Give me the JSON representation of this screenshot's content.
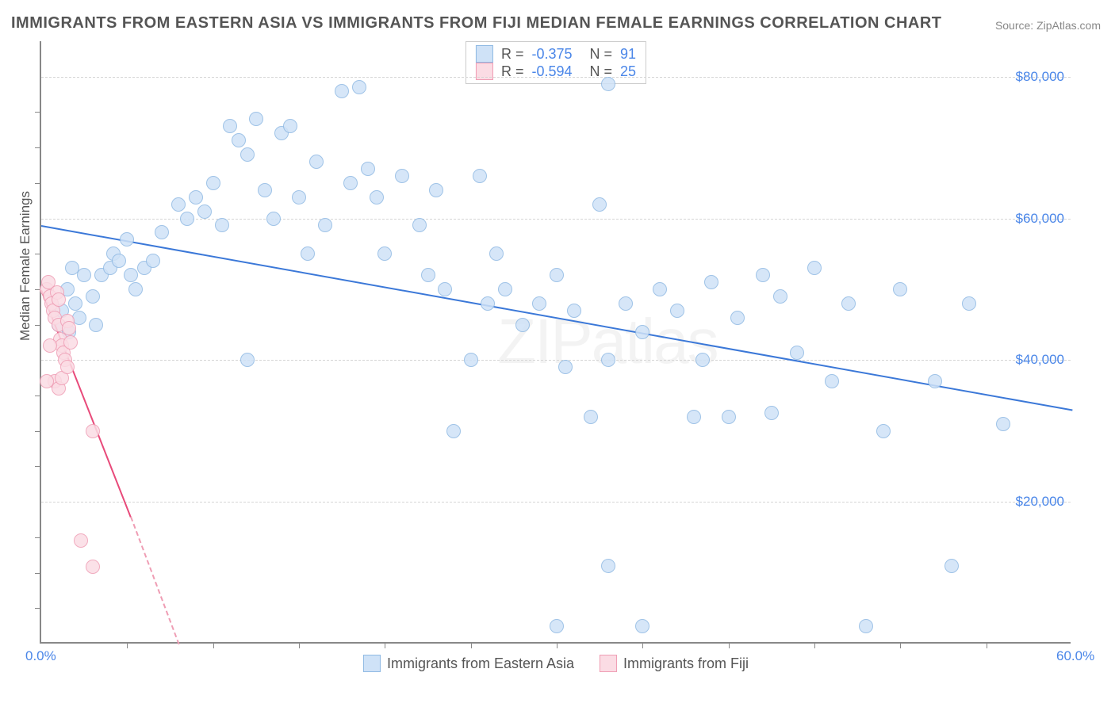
{
  "title": "IMMIGRANTS FROM EASTERN ASIA VS IMMIGRANTS FROM FIJI MEDIAN FEMALE EARNINGS CORRELATION CHART",
  "source": "Source: ZipAtlas.com",
  "watermark": "ZIPatlas",
  "ylabel": "Median Female Earnings",
  "chart": {
    "type": "scatter",
    "xlim": [
      0,
      60
    ],
    "ylim": [
      0,
      85000
    ],
    "xtick_labels": [
      "0.0%",
      "60.0%"
    ],
    "ytick_values": [
      20000,
      40000,
      60000,
      80000
    ],
    "ytick_labels": [
      "$20,000",
      "$40,000",
      "$60,000",
      "$80,000"
    ],
    "minor_xticks": [
      5,
      10,
      15,
      20,
      25,
      30,
      35,
      40,
      45,
      50,
      55
    ],
    "minor_yticks": [
      5000,
      10000,
      15000,
      25000,
      30000,
      35000,
      45000,
      50000,
      55000,
      65000,
      70000,
      75000
    ],
    "grid_color": "#d5d5d5",
    "background": "#ffffff",
    "series": [
      {
        "name": "Immigrants from Eastern Asia",
        "fill": "#cfe2f7",
        "stroke": "#8fb9e3",
        "trend_color": "#3b78d8",
        "r_value": "-0.375",
        "n_value": "91",
        "trend": {
          "x1": 0,
          "y1": 59000,
          "x2": 60,
          "y2": 33000
        },
        "marker_radius": 9,
        "points": [
          [
            1.0,
            45000
          ],
          [
            1.2,
            47000
          ],
          [
            1.5,
            50000
          ],
          [
            1.6,
            44000
          ],
          [
            1.8,
            53000
          ],
          [
            2.0,
            48000
          ],
          [
            2.2,
            46000
          ],
          [
            2.5,
            52000
          ],
          [
            3.0,
            49000
          ],
          [
            3.2,
            45000
          ],
          [
            3.5,
            52000
          ],
          [
            4.0,
            53000
          ],
          [
            4.2,
            55000
          ],
          [
            4.5,
            54000
          ],
          [
            5.0,
            57000
          ],
          [
            5.2,
            52000
          ],
          [
            5.5,
            50000
          ],
          [
            6.0,
            53000
          ],
          [
            6.5,
            54000
          ],
          [
            7.0,
            58000
          ],
          [
            8.0,
            62000
          ],
          [
            8.5,
            60000
          ],
          [
            9.0,
            63000
          ],
          [
            9.5,
            61000
          ],
          [
            10.0,
            65000
          ],
          [
            10.5,
            59000
          ],
          [
            11.0,
            73000
          ],
          [
            11.5,
            71000
          ],
          [
            12.0,
            69000
          ],
          [
            12.5,
            74000
          ],
          [
            13.0,
            64000
          ],
          [
            13.5,
            60000
          ],
          [
            14.0,
            72000
          ],
          [
            14.5,
            73000
          ],
          [
            15.0,
            63000
          ],
          [
            15.5,
            55000
          ],
          [
            16.0,
            68000
          ],
          [
            16.5,
            59000
          ],
          [
            17.5,
            78000
          ],
          [
            18.0,
            65000
          ],
          [
            18.5,
            78500
          ],
          [
            19.0,
            67000
          ],
          [
            19.5,
            63000
          ],
          [
            20.0,
            55000
          ],
          [
            21.0,
            66000
          ],
          [
            22.0,
            59000
          ],
          [
            22.5,
            52000
          ],
          [
            23.0,
            64000
          ],
          [
            23.5,
            50000
          ],
          [
            25.0,
            40000
          ],
          [
            25.5,
            66000
          ],
          [
            26.0,
            48000
          ],
          [
            26.5,
            55000
          ],
          [
            27.0,
            50000
          ],
          [
            28.0,
            45000
          ],
          [
            29.0,
            48000
          ],
          [
            30.0,
            52000
          ],
          [
            30.5,
            39000
          ],
          [
            31.0,
            47000
          ],
          [
            24.0,
            30000
          ],
          [
            30.0,
            2500
          ],
          [
            32.0,
            32000
          ],
          [
            32.5,
            62000
          ],
          [
            33.0,
            40000
          ],
          [
            34.0,
            48000
          ],
          [
            35.0,
            44000
          ],
          [
            35.0,
            2500
          ],
          [
            36.0,
            50000
          ],
          [
            37.0,
            47000
          ],
          [
            33.0,
            11000
          ],
          [
            38.0,
            32000
          ],
          [
            39.0,
            51000
          ],
          [
            40.0,
            32000
          ],
          [
            40.5,
            46000
          ],
          [
            42.0,
            52000
          ],
          [
            43.0,
            49000
          ],
          [
            44.0,
            41000
          ],
          [
            45.0,
            53000
          ],
          [
            46.0,
            37000
          ],
          [
            47.0,
            48000
          ],
          [
            48.0,
            2500
          ],
          [
            49.0,
            30000
          ],
          [
            50.0,
            50000
          ],
          [
            52.0,
            37000
          ],
          [
            53.0,
            11000
          ],
          [
            54.0,
            48000
          ],
          [
            56.0,
            31000
          ],
          [
            33.0,
            79000
          ],
          [
            38.5,
            40000
          ],
          [
            42.5,
            32500
          ],
          [
            12.0,
            40000
          ]
        ]
      },
      {
        "name": "Immigrants from Fiji",
        "fill": "#fbdce4",
        "stroke": "#ef9db4",
        "trend_color": "#e84a7a",
        "r_value": "-0.594",
        "n_value": "25",
        "trend": {
          "x1": 0,
          "y1": 50000,
          "x2": 5.2,
          "y2": 18000
        },
        "trend_dash": {
          "x1": 5.2,
          "y1": 18000,
          "x2": 8.0,
          "y2": 0
        },
        "marker_radius": 9,
        "points": [
          [
            0.3,
            50000
          ],
          [
            0.4,
            51000
          ],
          [
            0.5,
            49000
          ],
          [
            0.6,
            48000
          ],
          [
            0.7,
            47000
          ],
          [
            0.8,
            46000
          ],
          [
            0.9,
            49500
          ],
          [
            1.0,
            45000
          ],
          [
            1.0,
            48500
          ],
          [
            1.1,
            43000
          ],
          [
            1.2,
            42000
          ],
          [
            1.3,
            41000
          ],
          [
            1.4,
            40000
          ],
          [
            1.5,
            45500
          ],
          [
            1.6,
            44500
          ],
          [
            1.7,
            42500
          ],
          [
            0.8,
            37000
          ],
          [
            1.0,
            36000
          ],
          [
            1.2,
            37500
          ],
          [
            1.5,
            39000
          ],
          [
            0.5,
            42000
          ],
          [
            3.0,
            30000
          ],
          [
            2.3,
            14500
          ],
          [
            3.0,
            10800
          ],
          [
            0.3,
            37000
          ]
        ]
      }
    ]
  }
}
